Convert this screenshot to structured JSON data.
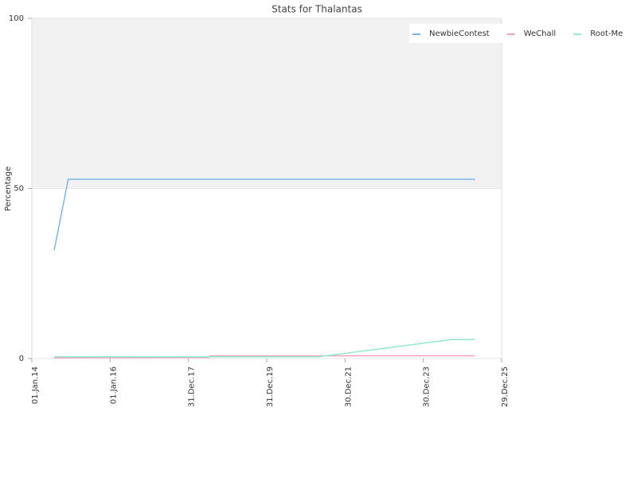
{
  "chart_data": {
    "type": "line",
    "title": "Stats for Thalantas",
    "y_label": "Percentage",
    "xlim": [
      2014.0,
      2026.0
    ],
    "xticks": [
      {
        "value": 2014.0,
        "label": "01.Jan.14"
      },
      {
        "value": 2016.0,
        "label": "01.Jan.16"
      },
      {
        "value": 2018.0,
        "label": "31.Dec.17"
      },
      {
        "value": 2020.0,
        "label": "31.Dec.19"
      },
      {
        "value": 2022.0,
        "label": "30.Dec.21"
      },
      {
        "value": 2024.0,
        "label": "30.Dec.23"
      },
      {
        "value": 2026.0,
        "label": "29.Dec.25"
      }
    ],
    "ylim": [
      0,
      100
    ],
    "yticks": [
      0,
      50,
      100
    ],
    "plot_band": {
      "from": 50,
      "to": 100,
      "color": "#f2f2f2"
    },
    "legend": "top-right",
    "series": [
      {
        "name": "NewbieContest",
        "color": "#7cb5ec",
        "x": [
          2014.57,
          2014.93,
          2025.32
        ],
        "values": [
          31.8,
          52.7,
          52.7
        ]
      },
      {
        "name": "WeChall",
        "color": "#f7a1c0",
        "x": [
          2014.57,
          2018.53,
          2018.55,
          2025.32
        ],
        "values": [
          0.2,
          0.3,
          0.8,
          0.8
        ]
      },
      {
        "name": "Root-Me",
        "color": "#90ebc8",
        "x": [
          2014.57,
          2021.32,
          2024.73,
          2025.32
        ],
        "values": [
          0.5,
          0.5,
          5.6,
          5.6
        ]
      }
    ]
  }
}
